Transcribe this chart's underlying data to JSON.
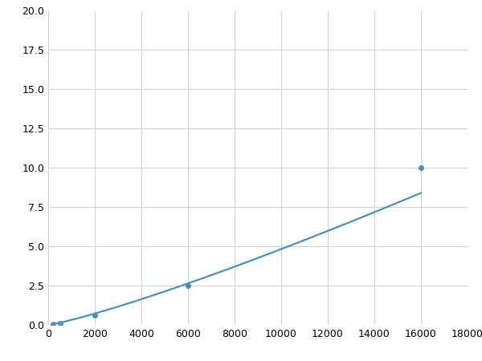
{
  "x": [
    200,
    500,
    2000,
    6000,
    16000
  ],
  "y": [
    0.06,
    0.12,
    0.6,
    2.5,
    10.0
  ],
  "line_color": "#4a90b8",
  "marker_color": "#4a90b8",
  "marker_size": 4,
  "line_width": 1.6,
  "xlim": [
    0,
    18000
  ],
  "ylim": [
    0,
    20
  ],
  "xticks": [
    0,
    2000,
    4000,
    6000,
    8000,
    10000,
    12000,
    14000,
    16000,
    18000
  ],
  "yticks": [
    0.0,
    2.5,
    5.0,
    7.5,
    10.0,
    12.5,
    15.0,
    17.5,
    20.0
  ],
  "grid_color": "#c8d0d8",
  "background_color": "#ffffff",
  "figure_background": "#ffffff"
}
